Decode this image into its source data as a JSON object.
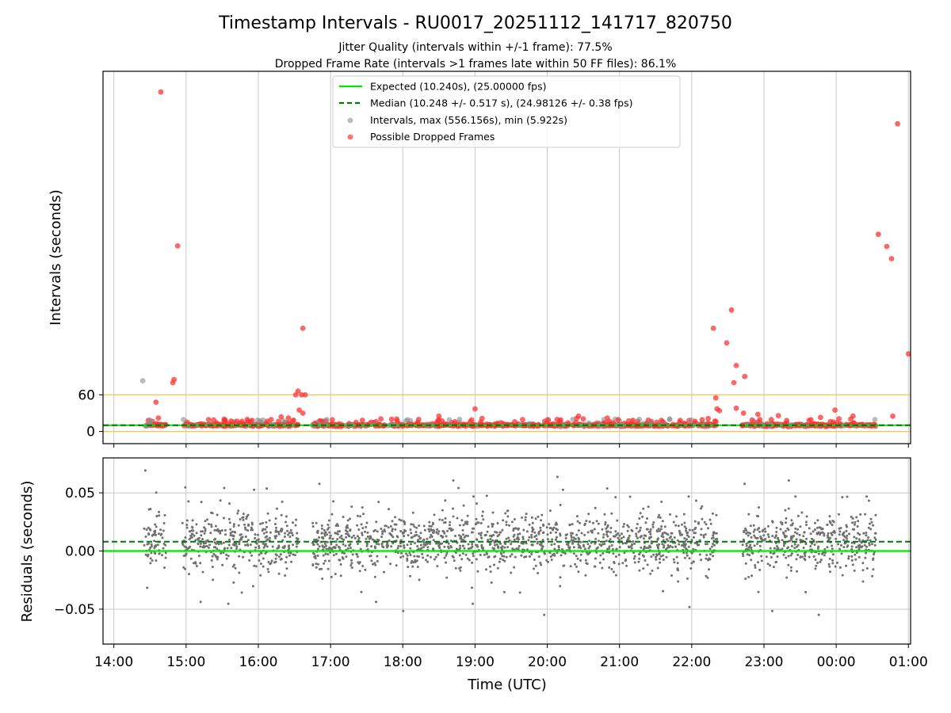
{
  "chart_data": [
    {
      "type": "scatter",
      "title": "Timestamp Intervals - RU0017_20251112_141717_820750",
      "subtitle_lines": [
        "Jitter Quality (intervals within +/-1 frame): 77.5%",
        "Dropped Frame Rate (intervals >1 frames late within 50 FF files): 86.1%"
      ],
      "ylabel": "Intervals (seconds)",
      "y_ticks": [
        "0",
        "60"
      ],
      "ylim": [
        -20,
        590
      ],
      "xlim_hours_utc": [
        13.85,
        25.03
      ],
      "grid": "vertical",
      "legend_position": "top-center",
      "legend": [
        {
          "label": "Expected (10.240s), (25.00000 fps)",
          "style": "solid-line",
          "color": "#00e600"
        },
        {
          "label": "Median (10.248 +/- 0.517 s), (24.98126 +/- 0.38 fps)",
          "style": "dashed-line",
          "color": "#007a00"
        },
        {
          "label": "Intervals, max (556.156s), min (5.922s)",
          "style": "marker",
          "color": "#8c8c8c"
        },
        {
          "label": "Possible Dropped Frames",
          "style": "marker",
          "color": "#ff3333"
        }
      ],
      "expected_interval": 10.24,
      "median_interval": 10.248,
      "threshold_lines": [
        0,
        60
      ],
      "dropped_frames": [
        {
          "x": "14:39",
          "y": 556
        },
        {
          "x": "14:53",
          "y": 304
        },
        {
          "x": "14:50",
          "y": 85
        },
        {
          "x": "14:49",
          "y": 80
        },
        {
          "x": "14:35",
          "y": 48
        },
        {
          "x": "14:37",
          "y": 22
        },
        {
          "x": "16:37",
          "y": 169
        },
        {
          "x": "16:33",
          "y": 66
        },
        {
          "x": "16:36",
          "y": 60
        },
        {
          "x": "16:39",
          "y": 60
        },
        {
          "x": "16:31",
          "y": 60
        },
        {
          "x": "16:34",
          "y": 35
        },
        {
          "x": "16:37",
          "y": 30
        },
        {
          "x": "16:25",
          "y": 22
        },
        {
          "x": "16:19",
          "y": 24
        },
        {
          "x": "22:18",
          "y": 169
        },
        {
          "x": "22:33",
          "y": 199
        },
        {
          "x": "22:29",
          "y": 145
        },
        {
          "x": "22:37",
          "y": 108
        },
        {
          "x": "22:44",
          "y": 90
        },
        {
          "x": "22:35",
          "y": 80
        },
        {
          "x": "22:20",
          "y": 55
        },
        {
          "x": "22:21",
          "y": 37
        },
        {
          "x": "22:23",
          "y": 34
        },
        {
          "x": "22:37",
          "y": 38
        },
        {
          "x": "22:43",
          "y": 30
        },
        {
          "x": "22:55",
          "y": 28
        },
        {
          "x": "23:12",
          "y": 26
        },
        {
          "x": "23:47",
          "y": 23
        },
        {
          "x": "23:59",
          "y": 35
        },
        {
          "x": "00:14",
          "y": 25
        },
        {
          "x": "00:35",
          "y": 323
        },
        {
          "x": "00:42",
          "y": 303
        },
        {
          "x": "00:46",
          "y": 283
        },
        {
          "x": "00:51",
          "y": 504
        },
        {
          "x": "01:00",
          "y": 127
        },
        {
          "x": "00:47",
          "y": 25
        },
        {
          "x": "19:00",
          "y": 37
        },
        {
          "x": "18:30",
          "y": 25
        },
        {
          "x": "20:26",
          "y": 25
        }
      ],
      "intervals_sample": [
        {
          "x": "14:24",
          "y": 83
        },
        {
          "x": "14:30",
          "y": 12
        },
        {
          "x": "16:46",
          "y": 10
        },
        {
          "x": "22:58",
          "y": 12
        }
      ]
    },
    {
      "type": "scatter",
      "xlabel": "Time (UTC)",
      "ylabel": "Residuals (seconds)",
      "x_ticks": [
        "14:00",
        "15:00",
        "16:00",
        "17:00",
        "18:00",
        "19:00",
        "20:00",
        "21:00",
        "22:00",
        "23:00",
        "00:00",
        "01:00"
      ],
      "y_ticks": [
        "−0.05",
        "0.00",
        "0.05"
      ],
      "ylim": [
        -0.08,
        0.08
      ],
      "xlim_hours_utc": [
        13.85,
        25.03
      ],
      "grid": "both",
      "zero_line_color": "#00e600",
      "median_offset": 0.008,
      "median_line_color": "#007a00",
      "point_color": "#707070",
      "residual_spread_note_free": true,
      "residual_segments_hours": [
        [
          14.42,
          14.72
        ],
        [
          14.95,
          16.55
        ],
        [
          16.75,
          22.35
        ],
        [
          22.7,
          24.55
        ]
      ]
    }
  ],
  "colors": {
    "expected": "#00e600",
    "median": "#007a00",
    "intervals": "#8c8c8c",
    "dropped": "#ff3333",
    "threshold": "#ffc34d",
    "grid": "#c8c8c8"
  }
}
